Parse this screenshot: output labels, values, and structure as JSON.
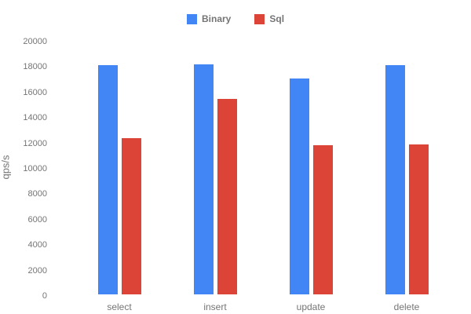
{
  "chart_data": {
    "type": "bar",
    "title": "",
    "xlabel": "",
    "ylabel": "qps/s",
    "ylim": [
      0,
      20000
    ],
    "yticks": [
      0,
      2000,
      4000,
      6000,
      8000,
      10000,
      12000,
      14000,
      16000,
      18000,
      20000
    ],
    "grid": false,
    "legend_position": "top-center",
    "categories": [
      "select",
      "insert",
      "update",
      "delete"
    ],
    "series": [
      {
        "name": "Binary",
        "color": "#4285F4",
        "values": [
          18000,
          18100,
          17000,
          18000
        ]
      },
      {
        "name": "Sql",
        "color": "#DB4437",
        "values": [
          12300,
          15400,
          11700,
          11800
        ]
      }
    ],
    "colors": {
      "binary": "#4285F4",
      "sql": "#DB4437",
      "text": "#757575",
      "background": "#ffffff"
    }
  }
}
